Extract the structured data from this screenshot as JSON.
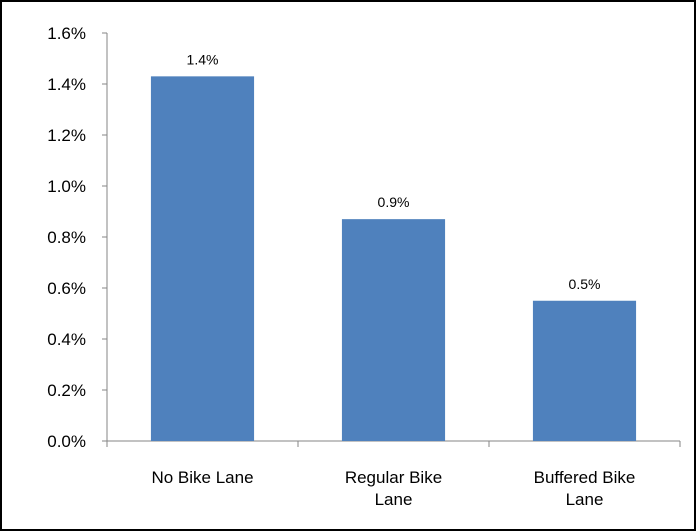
{
  "chart_data": {
    "type": "bar",
    "categories": [
      [
        "No Bike Lane"
      ],
      [
        "Regular Bike",
        "Lane"
      ],
      [
        "Buffered Bike",
        "Lane"
      ]
    ],
    "values": [
      1.43,
      0.87,
      0.55
    ],
    "data_labels": [
      "1.4%",
      "0.9%",
      "0.5%"
    ],
    "y_ticks": [
      "0.0%",
      "0.2%",
      "0.4%",
      "0.6%",
      "0.8%",
      "1.0%",
      "1.2%",
      "1.4%",
      "1.6%"
    ],
    "ylim": [
      0,
      1.6
    ],
    "grid": false,
    "legend": "none",
    "bar_color": "#4f81bd",
    "frame_color": "#000000"
  }
}
